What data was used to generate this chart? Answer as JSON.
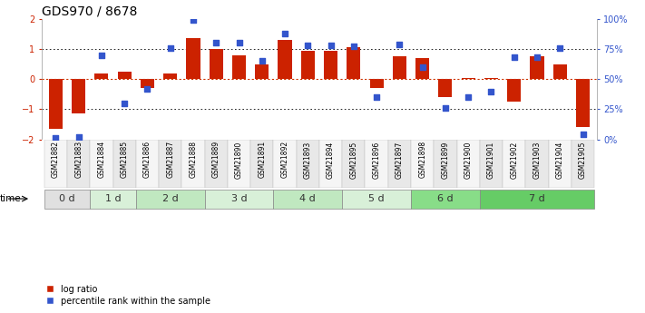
{
  "title": "GDS970 / 8678",
  "samples": [
    "GSM21882",
    "GSM21883",
    "GSM21884",
    "GSM21885",
    "GSM21886",
    "GSM21887",
    "GSM21888",
    "GSM21889",
    "GSM21890",
    "GSM21891",
    "GSM21892",
    "GSM21893",
    "GSM21894",
    "GSM21895",
    "GSM21896",
    "GSM21897",
    "GSM21898",
    "GSM21899",
    "GSM21900",
    "GSM21901",
    "GSM21902",
    "GSM21903",
    "GSM21904",
    "GSM21905"
  ],
  "log_ratio": [
    -1.65,
    -1.15,
    0.2,
    0.25,
    -0.3,
    0.2,
    1.35,
    1.0,
    0.8,
    0.5,
    1.3,
    0.95,
    0.95,
    1.05,
    -0.3,
    0.75,
    0.7,
    -0.6,
    0.03,
    0.03,
    -0.75,
    0.75,
    0.5,
    -1.6
  ],
  "percentile": [
    1,
    2,
    70,
    30,
    42,
    76,
    99,
    80,
    80,
    65,
    88,
    78,
    78,
    77,
    35,
    79,
    60,
    26,
    35,
    40,
    68,
    68,
    76,
    4
  ],
  "time_groups": [
    {
      "label": "0 d",
      "start": 0,
      "end": 2,
      "color": "#e0e0e0"
    },
    {
      "label": "1 d",
      "start": 2,
      "end": 4,
      "color": "#d8f0d8"
    },
    {
      "label": "2 d",
      "start": 4,
      "end": 7,
      "color": "#c0e8c0"
    },
    {
      "label": "3 d",
      "start": 7,
      "end": 10,
      "color": "#d8f0d8"
    },
    {
      "label": "4 d",
      "start": 10,
      "end": 13,
      "color": "#c0e8c0"
    },
    {
      "label": "5 d",
      "start": 13,
      "end": 16,
      "color": "#d8f0d8"
    },
    {
      "label": "6 d",
      "start": 16,
      "end": 19,
      "color": "#88dd88"
    },
    {
      "label": "7 d",
      "start": 19,
      "end": 24,
      "color": "#66cc66"
    }
  ],
  "ylim": [
    -2,
    2
  ],
  "y2lim": [
    0,
    100
  ],
  "yticks_left": [
    -2,
    -1,
    0,
    1,
    2
  ],
  "yticks_right": [
    0,
    25,
    50,
    75,
    100
  ],
  "ytick_labels_right": [
    "0%",
    "25%",
    "50%",
    "75%",
    "100%"
  ],
  "bar_color": "#cc2200",
  "dot_color": "#3355cc",
  "hline_color": "#cc3300",
  "bg_color": "#ffffff",
  "col_colors": [
    "#f5f5f5",
    "#e8e8e8"
  ],
  "title_fontsize": 10,
  "tick_fontsize": 7,
  "sample_fontsize": 5.5,
  "time_fontsize": 8,
  "legend_bar_label": "log ratio",
  "legend_dot_label": "percentile rank within the sample",
  "legend_fontsize": 7
}
